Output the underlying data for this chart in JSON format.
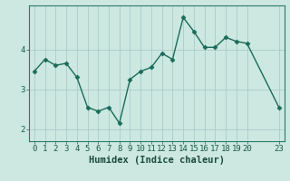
{
  "x": [
    0,
    1,
    2,
    3,
    4,
    5,
    6,
    7,
    8,
    9,
    10,
    11,
    12,
    13,
    14,
    15,
    16,
    17,
    18,
    19,
    20,
    23
  ],
  "y": [
    3.45,
    3.75,
    3.6,
    3.65,
    3.3,
    2.55,
    2.45,
    2.55,
    2.15,
    3.25,
    3.45,
    3.55,
    3.9,
    3.75,
    4.8,
    4.45,
    4.05,
    4.05,
    4.3,
    4.2,
    4.15,
    2.55
  ],
  "xticks": [
    0,
    1,
    2,
    3,
    4,
    5,
    6,
    7,
    8,
    9,
    10,
    11,
    12,
    13,
    14,
    15,
    16,
    17,
    18,
    19,
    20,
    23
  ],
  "xtick_labels": [
    "0",
    "1",
    "2",
    "3",
    "4",
    "5",
    "6",
    "7",
    "8",
    "9",
    "10",
    "11",
    "12",
    "13",
    "14",
    "15",
    "16",
    "17",
    "18",
    "19",
    "20",
    "23"
  ],
  "yticks": [
    2,
    3,
    4
  ],
  "ylim": [
    1.7,
    5.1
  ],
  "xlim": [
    -0.5,
    23.5
  ],
  "xlabel": "Humidex (Indice chaleur)",
  "line_color": "#1a6b5a",
  "marker": "D",
  "marker_size": 2.5,
  "bg_color": "#cce8e0",
  "grid_color": "#aacccc",
  "axis_bg": "#cce8e0",
  "tick_color": "#1a5a4a",
  "label_color": "#1a4a3a",
  "tick_label_fontsize": 6.5,
  "xlabel_fontsize": 7.5,
  "spine_color": "#2a7a6a",
  "linewidth": 1.0
}
